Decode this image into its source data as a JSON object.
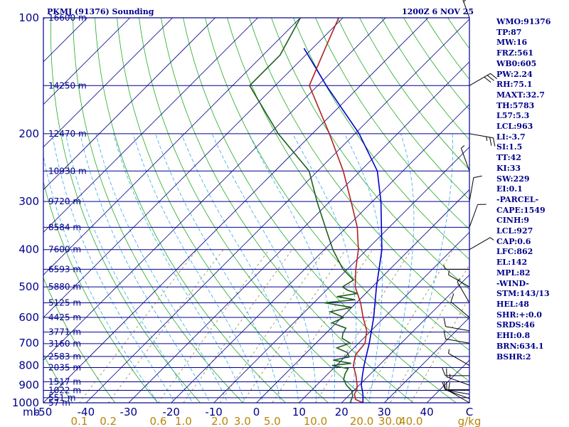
{
  "header": {
    "title": "PKMJ (91376) Sounding",
    "timestamp": "1200Z  6 NOV 25"
  },
  "indices": [
    "WMO:91376",
    "TP:87",
    "MW:16",
    "FRZ:561",
    "WB0:605",
    "PW:2.24",
    "RH:75.1",
    "MAXT:32.7",
    "TH:5783",
    "L57:5.3",
    "LCL:963",
    "LI:-3.7",
    "SI:1.5",
    "TT:42",
    "KI:33",
    "SW:229",
    "EI:0.1",
    "-PARCEL-",
    "CAPE:1549",
    "CINH:9",
    "LCL:927",
    "CAP:0.6",
    "LFC:862",
    "EL:142",
    "MPL:82",
    "-WIND-",
    "STM:143/13",
    "HEL:48",
    "SHR:+:0.0",
    "SRDS:46",
    "EHI:0.8",
    "BRN:634.1",
    "BSHR:2"
  ],
  "colors": {
    "frame": "#00008b",
    "isobar": "#00008b",
    "isotherm": "#00008b",
    "dry_adiabat": "#22aa22",
    "moist_adiabat": "#33aaee",
    "mixing_ratio": "#8b864e",
    "temperature": "#b22222",
    "dewpoint": "#1f5f1f",
    "parcel": "#0000cd",
    "wind": "#000000"
  },
  "chart_data": {
    "type": "skew-t",
    "title": "PKMJ (91376) Sounding",
    "x_unit": "C",
    "y_unit": "mb",
    "mixing_ratio_unit": "g/kg",
    "plim": [
      1000,
      100
    ],
    "xlim": [
      -50,
      50
    ],
    "pressure_tick_labels": [
      "100",
      "200",
      "300",
      "400",
      "500",
      "600",
      "700",
      "800",
      "900",
      "1000"
    ],
    "temperature_tick_labels": [
      "-50",
      "-40",
      "-30",
      "-20",
      "-10",
      "0",
      "10",
      "20",
      "30",
      "40",
      "C"
    ],
    "temperature_ticks": [
      -50,
      -40,
      -30,
      -20,
      -10,
      0,
      10,
      20,
      30,
      40
    ],
    "mixing_ratio_labels": [
      "0.1",
      "0.2",
      "0.6",
      "1.0",
      "2.0",
      "3.0",
      "5.0",
      "10.0",
      "20.0",
      "30.0",
      "40.0",
      "g/kg"
    ],
    "mixing_ratio_values": [
      0.1,
      0.2,
      0.6,
      1.0,
      2.0,
      3.0,
      5.0,
      10.0,
      20.0,
      30.0,
      40.0
    ],
    "height_levels": [
      {
        "p": 1000,
        "label": "57 m"
      },
      {
        "p": 970,
        "label": "551 m"
      },
      {
        "p": 928,
        "label": "1022 m"
      },
      {
        "p": 882,
        "label": "1517 m"
      },
      {
        "p": 810,
        "label": "2035 m"
      },
      {
        "p": 758,
        "label": "2583 m"
      },
      {
        "p": 702,
        "label": "3160 m"
      },
      {
        "p": 655,
        "label": "3771 m"
      },
      {
        "p": 600,
        "label": "4425 m"
      },
      {
        "p": 550,
        "label": "5125 m"
      },
      {
        "p": 500,
        "label": "5880 m"
      },
      {
        "p": 450,
        "label": "6593 m"
      },
      {
        "p": 400,
        "label": "7600 m"
      },
      {
        "p": 350,
        "label": "8584 m"
      },
      {
        "p": 300,
        "label": "9720 m"
      },
      {
        "p": 250,
        "label": "10930 m"
      },
      {
        "p": 200,
        "label": "12470 m"
      },
      {
        "p": 150,
        "label": "14250 m"
      },
      {
        "p": 100,
        "label": "16600 m"
      }
    ],
    "temperature": [
      {
        "p": 1000,
        "t": 25.0
      },
      {
        "p": 980,
        "t": 22.5
      },
      {
        "p": 950,
        "t": 21.0
      },
      {
        "p": 925,
        "t": 20.5
      },
      {
        "p": 900,
        "t": 19.5
      },
      {
        "p": 850,
        "t": 17.0
      },
      {
        "p": 800,
        "t": 14.0
      },
      {
        "p": 750,
        "t": 12.0
      },
      {
        "p": 700,
        "t": 11.5
      },
      {
        "p": 650,
        "t": 9.0
      },
      {
        "p": 600,
        "t": 5.0
      },
      {
        "p": 550,
        "t": 1.0
      },
      {
        "p": 500,
        "t": -4.0
      },
      {
        "p": 450,
        "t": -8.0
      },
      {
        "p": 400,
        "t": -12.0
      },
      {
        "p": 350,
        "t": -17.5
      },
      {
        "p": 300,
        "t": -25.0
      },
      {
        "p": 250,
        "t": -34.0
      },
      {
        "p": 200,
        "t": -46.0
      },
      {
        "p": 150,
        "t": -62.0
      },
      {
        "p": 120,
        "t": -67.0
      },
      {
        "p": 100,
        "t": -71.0
      }
    ],
    "dewpoint": [
      {
        "p": 1000,
        "td": 22.0
      },
      {
        "p": 960,
        "td": 21.0
      },
      {
        "p": 930,
        "td": 19.5
      },
      {
        "p": 900,
        "td": 17.0
      },
      {
        "p": 870,
        "td": 15.0
      },
      {
        "p": 840,
        "td": 14.0
      },
      {
        "p": 815,
        "td": 13.5
      },
      {
        "p": 800,
        "td": 9.0
      },
      {
        "p": 790,
        "td": 13.0
      },
      {
        "p": 775,
        "td": 8.0
      },
      {
        "p": 760,
        "td": 11.0
      },
      {
        "p": 740,
        "td": 9.5
      },
      {
        "p": 720,
        "td": 6.0
      },
      {
        "p": 700,
        "td": 8.0
      },
      {
        "p": 680,
        "td": 5.0
      },
      {
        "p": 660,
        "td": 4.0
      },
      {
        "p": 640,
        "td": 3.5
      },
      {
        "p": 620,
        "td": -1.0
      },
      {
        "p": 600,
        "td": 0.5
      },
      {
        "p": 580,
        "td": -4.0
      },
      {
        "p": 565,
        "td": 0.0
      },
      {
        "p": 550,
        "td": -7.5
      },
      {
        "p": 540,
        "td": -1.0
      },
      {
        "p": 530,
        "td": -6.0
      },
      {
        "p": 520,
        "td": -2.0
      },
      {
        "p": 510,
        "td": -5.0
      },
      {
        "p": 500,
        "td": -7.0
      },
      {
        "p": 480,
        "td": -6.0
      },
      {
        "p": 450,
        "td": -11.0
      },
      {
        "p": 400,
        "td": -18.0
      },
      {
        "p": 350,
        "td": -25.0
      },
      {
        "p": 300,
        "td": -33.0
      },
      {
        "p": 250,
        "td": -42.0
      },
      {
        "p": 200,
        "td": -58.0
      },
      {
        "p": 150,
        "td": -76.0
      },
      {
        "p": 125,
        "td": -76.0
      },
      {
        "p": 100,
        "td": -80.0
      }
    ],
    "parcel": [
      {
        "p": 1000,
        "t": 25.0
      },
      {
        "p": 950,
        "t": 23.0
      },
      {
        "p": 900,
        "t": 20.5
      },
      {
        "p": 850,
        "t": 18.5
      },
      {
        "p": 800,
        "t": 16.5
      },
      {
        "p": 700,
        "t": 12.5
      },
      {
        "p": 600,
        "t": 7.5
      },
      {
        "p": 500,
        "t": 1.0
      },
      {
        "p": 400,
        "t": -6.5
      },
      {
        "p": 300,
        "t": -18.0
      },
      {
        "p": 250,
        "t": -26.0
      },
      {
        "p": 200,
        "t": -39.0
      },
      {
        "p": 150,
        "t": -58.0
      },
      {
        "p": 120,
        "t": -72.0
      }
    ],
    "wind_barbs": [
      {
        "p": 1000,
        "dir": 300,
        "spd": 10
      },
      {
        "p": 975,
        "dir": 290,
        "spd": 10
      },
      {
        "p": 950,
        "dir": 280,
        "spd": 10
      },
      {
        "p": 925,
        "dir": 270,
        "spd": 10
      },
      {
        "p": 900,
        "dir": 290,
        "spd": 15
      },
      {
        "p": 850,
        "dir": 270,
        "spd": 10
      },
      {
        "p": 800,
        "dir": 300,
        "spd": 5
      },
      {
        "p": 700,
        "dir": 280,
        "spd": 10
      },
      {
        "p": 650,
        "dir": 280,
        "spd": 10
      },
      {
        "p": 600,
        "dir": 310,
        "spd": 10
      },
      {
        "p": 550,
        "dir": 330,
        "spd": 5
      },
      {
        "p": 500,
        "dir": 300,
        "spd": 5
      },
      {
        "p": 450,
        "dir": 270,
        "spd": 5
      },
      {
        "p": 400,
        "dir": 60,
        "spd": 5
      },
      {
        "p": 350,
        "dir": 20,
        "spd": 10
      },
      {
        "p": 300,
        "dir": 10,
        "spd": 10
      },
      {
        "p": 250,
        "dir": 340,
        "spd": 5
      },
      {
        "p": 200,
        "dir": 100,
        "spd": 25
      },
      {
        "p": 150,
        "dir": 60,
        "spd": 30
      },
      {
        "p": 100,
        "dir": 340,
        "spd": 25
      }
    ]
  }
}
